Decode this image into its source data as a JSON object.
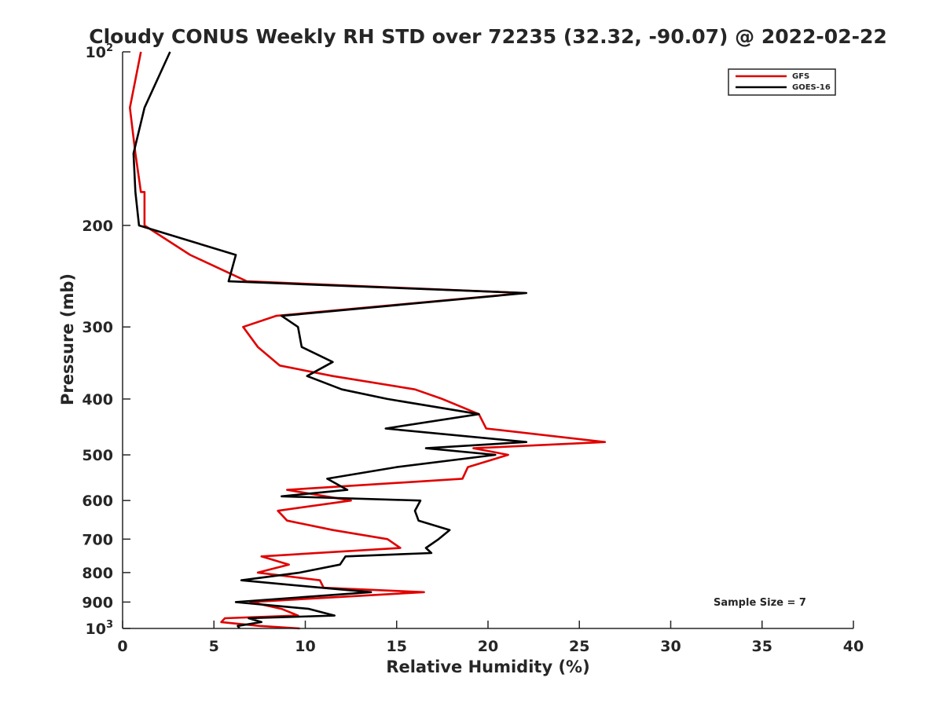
{
  "colors": {
    "gfs": "#e00000",
    "goes": "#000000",
    "axis": "#262626",
    "background": "#ffffff"
  },
  "chart_data": {
    "type": "line",
    "title": "Cloudy CONUS Weekly RH STD over 72235 (32.32, -90.07) @ 2022-02-22",
    "xlabel": "Relative Humidity (%)",
    "ylabel": "Pressure (mb)",
    "xlim": [
      0,
      40
    ],
    "ylim": [
      100,
      1000
    ],
    "yscale": "log",
    "yreversed": true,
    "grid": false,
    "legend_position": "top-right",
    "xticks": [
      0,
      5,
      10,
      15,
      20,
      25,
      30,
      35,
      40
    ],
    "xtick_labels": [
      "0",
      "5",
      "10",
      "15",
      "20",
      "25",
      "30",
      "35",
      "40"
    ],
    "yticks": [
      {
        "value": 100,
        "base": "10",
        "exp": "2"
      },
      {
        "value": 200,
        "label": "200"
      },
      {
        "value": 300,
        "label": "300"
      },
      {
        "value": 400,
        "label": "400"
      },
      {
        "value": 500,
        "label": "500"
      },
      {
        "value": 600,
        "label": "600"
      },
      {
        "value": 700,
        "label": "700"
      },
      {
        "value": 800,
        "label": "800"
      },
      {
        "value": 900,
        "label": "900"
      },
      {
        "value": 1000,
        "base": "10",
        "exp": "3"
      }
    ],
    "annotation": "Sample Size = 7",
    "series": [
      {
        "name": "GFS",
        "color": "#e00000",
        "points": [
          [
            1.0,
            100
          ],
          [
            0.4,
            125
          ],
          [
            0.7,
            150
          ],
          [
            1.0,
            175
          ],
          [
            1.2,
            175
          ],
          [
            1.2,
            200
          ],
          [
            3.7,
            225
          ],
          [
            6.8,
            250
          ],
          [
            22.0,
            262
          ],
          [
            8.4,
            287
          ],
          [
            6.6,
            300
          ],
          [
            7.4,
            325
          ],
          [
            8.6,
            350
          ],
          [
            11.5,
            365
          ],
          [
            16.0,
            385
          ],
          [
            17.5,
            400
          ],
          [
            19.5,
            425
          ],
          [
            19.9,
            450
          ],
          [
            26.4,
            475
          ],
          [
            19.2,
            487
          ],
          [
            21.1,
            500
          ],
          [
            18.9,
            525
          ],
          [
            18.6,
            550
          ],
          [
            9.0,
            575
          ],
          [
            12.5,
            600
          ],
          [
            8.5,
            625
          ],
          [
            9.0,
            650
          ],
          [
            11.5,
            675
          ],
          [
            14.5,
            700
          ],
          [
            15.2,
            725
          ],
          [
            7.6,
            750
          ],
          [
            9.1,
            775
          ],
          [
            7.4,
            800
          ],
          [
            10.8,
            825
          ],
          [
            11.0,
            850
          ],
          [
            16.5,
            865
          ],
          [
            7.0,
            900
          ],
          [
            8.7,
            925
          ],
          [
            9.6,
            950
          ],
          [
            5.6,
            960
          ],
          [
            5.4,
            975
          ],
          [
            7.5,
            990
          ],
          [
            9.7,
            1000
          ]
        ]
      },
      {
        "name": "GOES-16",
        "color": "#000000",
        "points": [
          [
            2.6,
            100
          ],
          [
            1.2,
            125
          ],
          [
            0.6,
            150
          ],
          [
            0.7,
            175
          ],
          [
            0.9,
            200
          ],
          [
            6.2,
            225
          ],
          [
            5.8,
            250
          ],
          [
            22.1,
            262
          ],
          [
            8.7,
            287
          ],
          [
            9.6,
            300
          ],
          [
            9.8,
            325
          ],
          [
            11.5,
            345
          ],
          [
            10.1,
            365
          ],
          [
            12.0,
            385
          ],
          [
            14.5,
            400
          ],
          [
            19.5,
            425
          ],
          [
            14.4,
            450
          ],
          [
            22.1,
            475
          ],
          [
            16.6,
            487
          ],
          [
            20.4,
            500
          ],
          [
            15.0,
            525
          ],
          [
            11.2,
            550
          ],
          [
            12.3,
            575
          ],
          [
            8.7,
            590
          ],
          [
            16.3,
            600
          ],
          [
            16.0,
            625
          ],
          [
            16.2,
            650
          ],
          [
            17.9,
            675
          ],
          [
            17.3,
            700
          ],
          [
            16.6,
            725
          ],
          [
            16.9,
            740
          ],
          [
            12.2,
            750
          ],
          [
            11.9,
            775
          ],
          [
            9.7,
            800
          ],
          [
            6.5,
            825
          ],
          [
            10.9,
            850
          ],
          [
            13.6,
            865
          ],
          [
            6.2,
            900
          ],
          [
            10.2,
            925
          ],
          [
            11.6,
            950
          ],
          [
            6.9,
            960
          ],
          [
            7.6,
            975
          ],
          [
            6.3,
            990
          ],
          [
            6.4,
            1000
          ]
        ]
      }
    ]
  }
}
